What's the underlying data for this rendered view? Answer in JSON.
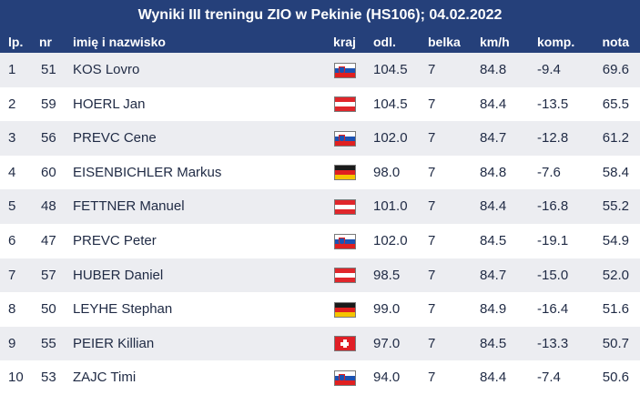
{
  "title": "Wyniki III treningu ZIO w Pekinie (HS106); 04.02.2022",
  "columns": {
    "lp": "lp.",
    "nr": "nr",
    "name": "imię i nazwisko",
    "kraj": "kraj",
    "odl": "odl.",
    "belka": "belka",
    "kmh": "km/h",
    "komp": "komp.",
    "nota": "nota"
  },
  "rows": [
    {
      "lp": "1",
      "nr": "51",
      "name": "KOS Lovro",
      "flag": "slovenia-flag-icon",
      "odl": "104.5",
      "belka": "7",
      "kmh": "84.8",
      "komp": "-9.4",
      "nota": "69.6"
    },
    {
      "lp": "2",
      "nr": "59",
      "name": "HOERL Jan",
      "flag": "austria-flag-icon",
      "odl": "104.5",
      "belka": "7",
      "kmh": "84.4",
      "komp": "-13.5",
      "nota": "65.5"
    },
    {
      "lp": "3",
      "nr": "56",
      "name": "PREVC Cene",
      "flag": "slovenia-flag-icon",
      "odl": "102.0",
      "belka": "7",
      "kmh": "84.7",
      "komp": "-12.8",
      "nota": "61.2"
    },
    {
      "lp": "4",
      "nr": "60",
      "name": "EISENBICHLER Markus",
      "flag": "germany-flag-icon",
      "odl": "98.0",
      "belka": "7",
      "kmh": "84.8",
      "komp": "-7.6",
      "nota": "58.4"
    },
    {
      "lp": "5",
      "nr": "48",
      "name": "FETTNER Manuel",
      "flag": "austria-flag-icon",
      "odl": "101.0",
      "belka": "7",
      "kmh": "84.4",
      "komp": "-16.8",
      "nota": "55.2"
    },
    {
      "lp": "6",
      "nr": "47",
      "name": "PREVC Peter",
      "flag": "slovenia-flag-icon",
      "odl": "102.0",
      "belka": "7",
      "kmh": "84.5",
      "komp": "-19.1",
      "nota": "54.9"
    },
    {
      "lp": "7",
      "nr": "57",
      "name": "HUBER Daniel",
      "flag": "austria-flag-icon",
      "odl": "98.5",
      "belka": "7",
      "kmh": "84.7",
      "komp": "-15.0",
      "nota": "52.0"
    },
    {
      "lp": "8",
      "nr": "50",
      "name": "LEYHE Stephan",
      "flag": "germany-flag-icon",
      "odl": "99.0",
      "belka": "7",
      "kmh": "84.9",
      "komp": "-16.4",
      "nota": "51.6"
    },
    {
      "lp": "9",
      "nr": "55",
      "name": "PEIER Killian",
      "flag": "switzerland-flag-icon",
      "odl": "97.0",
      "belka": "7",
      "kmh": "84.5",
      "komp": "-13.3",
      "nota": "50.7"
    },
    {
      "lp": "10",
      "nr": "53",
      "name": "ZAJC Timi",
      "flag": "slovenia-flag-icon",
      "odl": "94.0",
      "belka": "7",
      "kmh": "84.4",
      "komp": "-7.4",
      "nota": "50.6"
    }
  ],
  "colors": {
    "header_bg": "#25407a",
    "row_alt_bg": "#ecedf1",
    "text": "#1f2a44"
  }
}
